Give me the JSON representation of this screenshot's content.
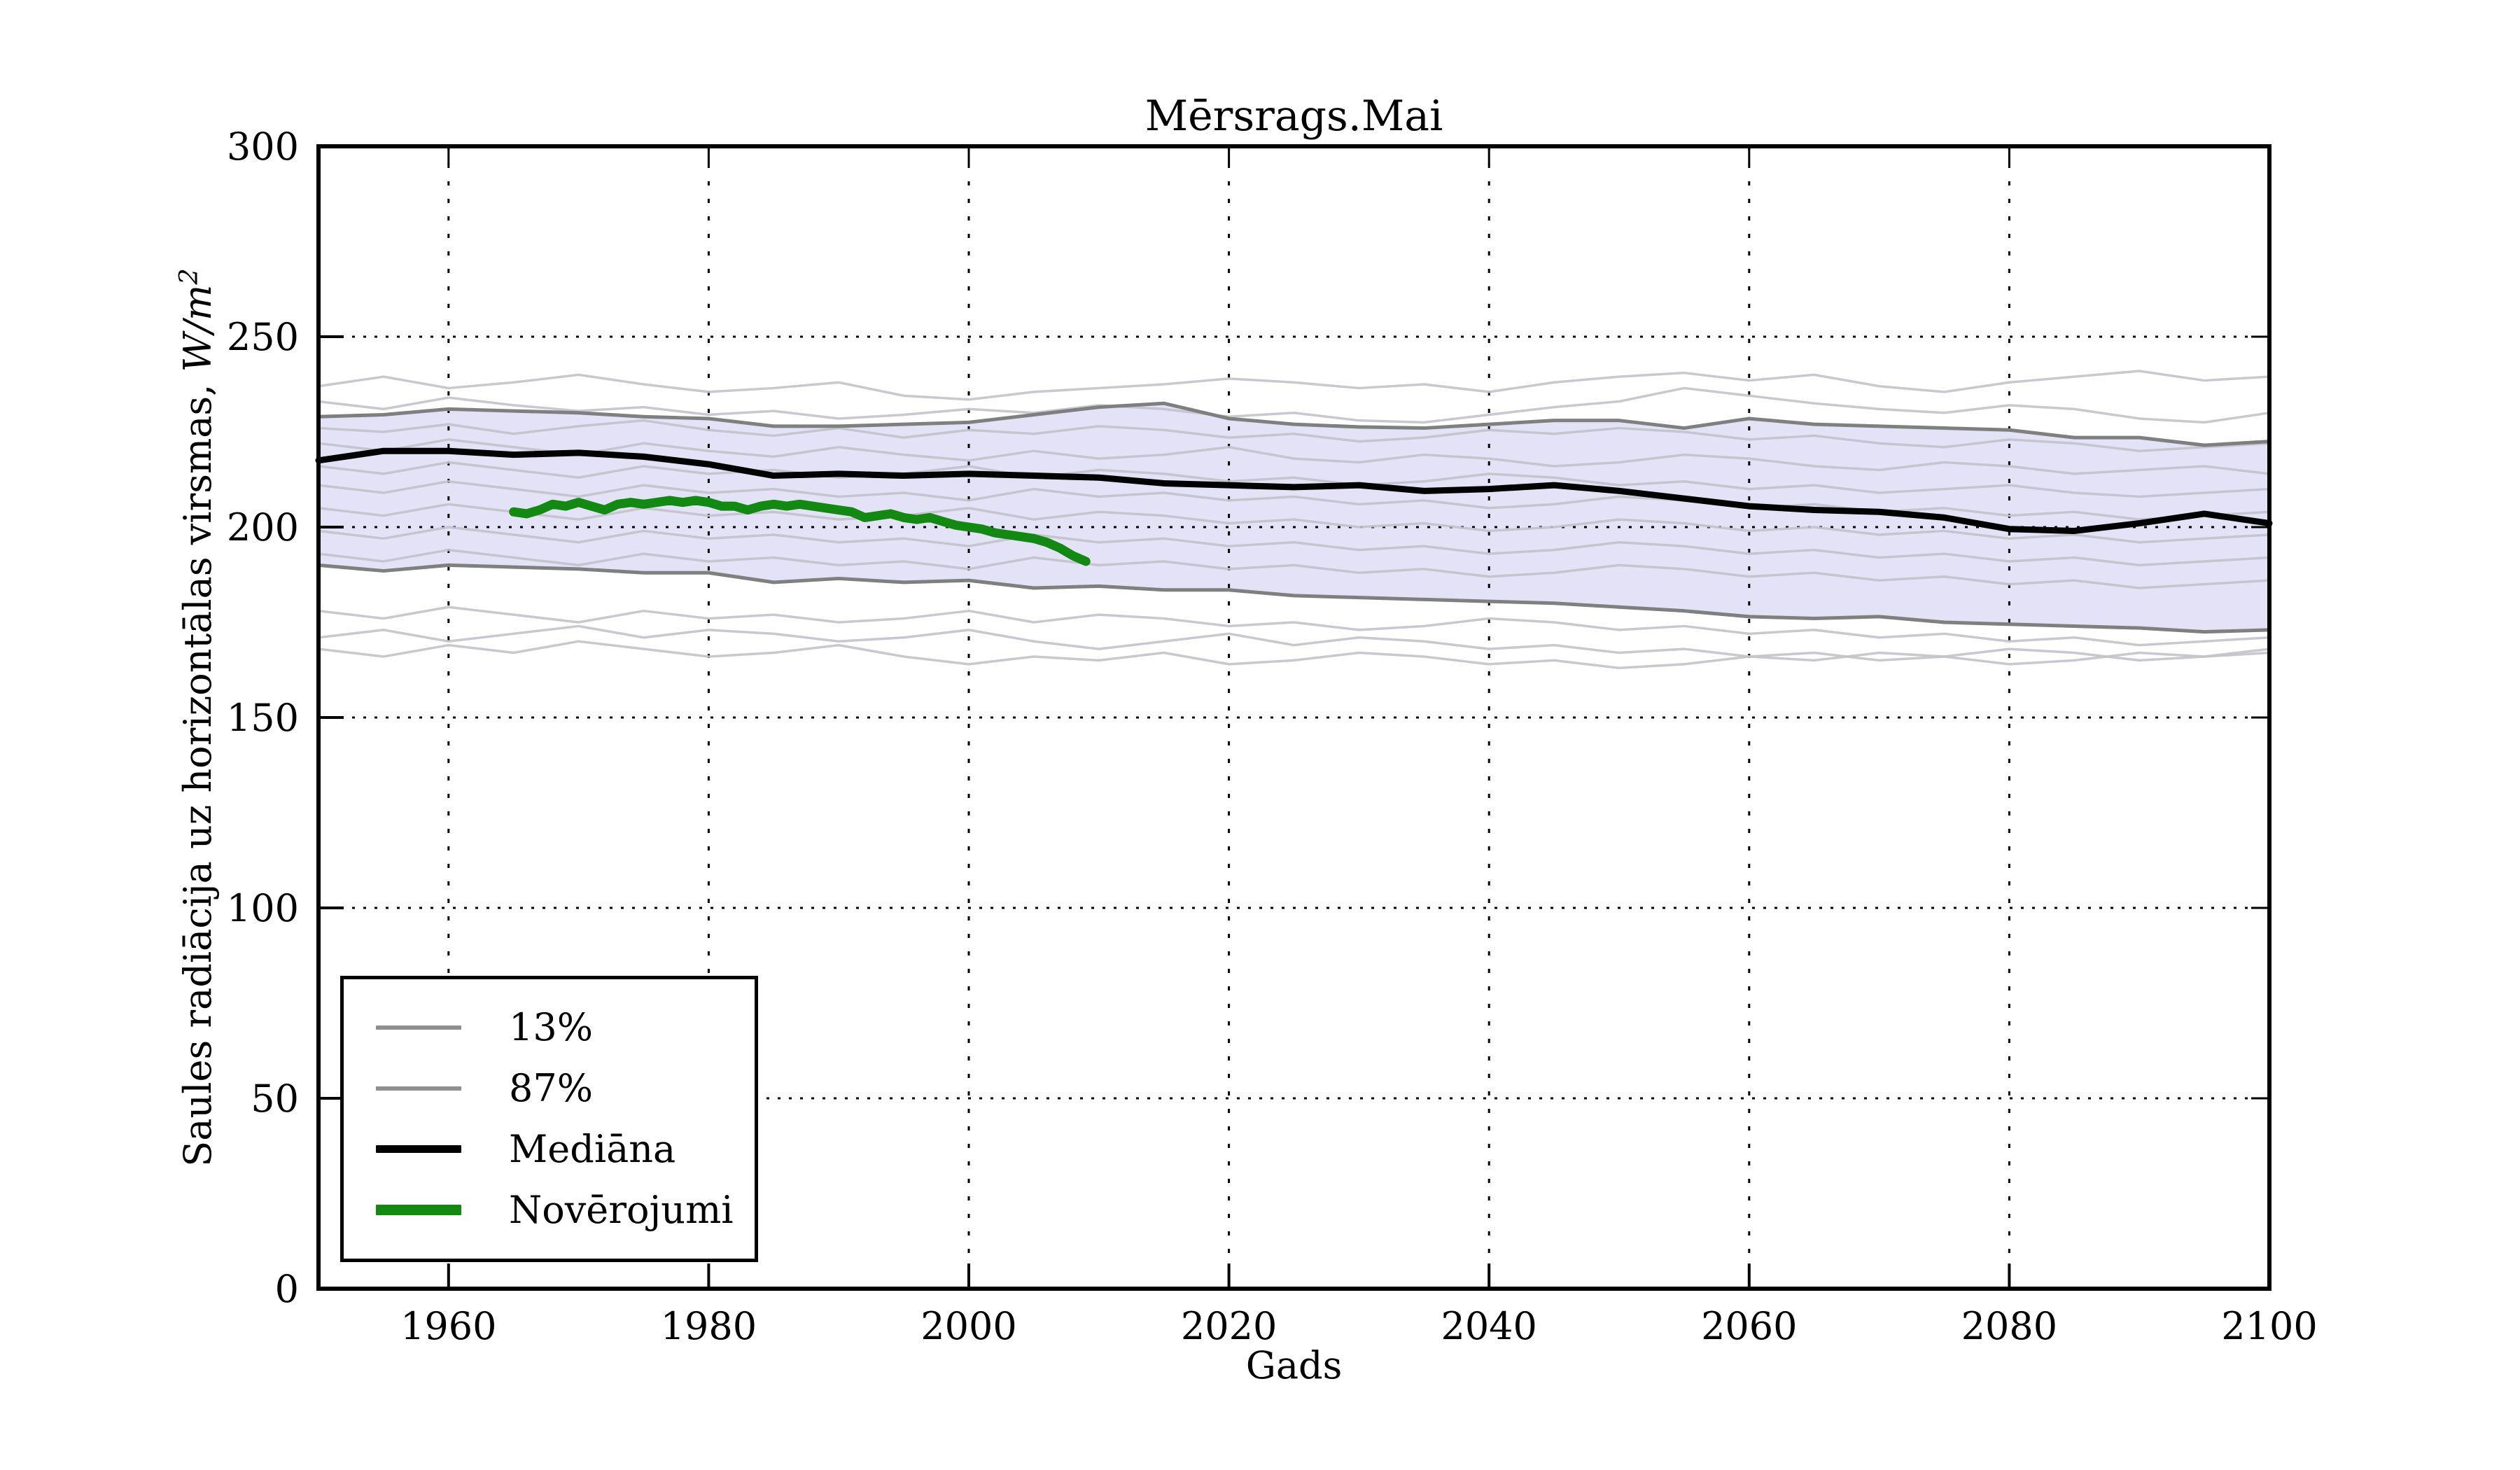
{
  "figure": {
    "title": "Mērsrags.Mai",
    "background": "#ffffff"
  },
  "axes": {
    "xlabel": "Gads",
    "ylabel_text": "Saules radiācija uz horizontālas virsmas, ",
    "ylabel_math": "W/m",
    "ylabel_sup": "2",
    "xtick_labels": [
      "1960",
      "1980",
      "2000",
      "2020",
      "2040",
      "2060",
      "2080",
      "2100"
    ],
    "ytick_labels": [
      "0",
      "50",
      "100",
      "150",
      "200",
      "250",
      "300"
    ]
  },
  "legend": {
    "entries": [
      {
        "label": "13%",
        "color": "#8f8f8f",
        "thickness": 6
      },
      {
        "label": "87%",
        "color": "#8f8f8f",
        "thickness": 6
      },
      {
        "label": "Mediāna",
        "color": "#000000",
        "thickness": 11
      },
      {
        "label": "Novērojumi",
        "color": "#128a12",
        "thickness": 15
      }
    ]
  },
  "chart_data": {
    "type": "line",
    "title": "Mērsrags.Mai",
    "xlabel": "Gads",
    "ylabel": "Saules radiācija uz horizontālas virsmas, W/m²",
    "xlim": [
      1950,
      2100
    ],
    "ylim": [
      0,
      300
    ],
    "xticks": [
      1960,
      1980,
      2000,
      2020,
      2040,
      2060,
      2080,
      2100
    ],
    "yticks": [
      0,
      50,
      100,
      150,
      200,
      250,
      300
    ],
    "grid": "dotted",
    "legend_position": "lower left",
    "colors": {
      "band_fill": "#e3e2f6",
      "band_edge": "#7f7f7f",
      "ensemble": "#c2c2cb",
      "median": "#000000",
      "observations": "#128a12",
      "grid": "#000000"
    },
    "band": {
      "upper_label": "87%",
      "lower_label": "13%",
      "years": [
        1950,
        1955,
        1960,
        1965,
        1970,
        1975,
        1980,
        1985,
        1990,
        1995,
        2000,
        2005,
        2010,
        2015,
        2020,
        2025,
        2030,
        2035,
        2040,
        2045,
        2050,
        2055,
        2060,
        2065,
        2070,
        2075,
        2080,
        2085,
        2090,
        2095,
        2100
      ],
      "upper": [
        229,
        229.5,
        231,
        230.5,
        230,
        229,
        228.5,
        226.5,
        226.5,
        227,
        227.5,
        229.5,
        231.5,
        232.5,
        228.5,
        227,
        226.3,
        226,
        227,
        228,
        228,
        226,
        228.5,
        227,
        226.5,
        226,
        225.5,
        223.5,
        223.5,
        221.5,
        222.5
      ],
      "lower": [
        190,
        188.5,
        190,
        189.5,
        189,
        188,
        188,
        185.5,
        186.5,
        185.5,
        186,
        184,
        184.5,
        183.5,
        183.5,
        182,
        181.5,
        181,
        180.5,
        180,
        179,
        178,
        176.5,
        176,
        176.5,
        175,
        174.5,
        174,
        173.5,
        172.5,
        173
      ]
    },
    "series": [
      {
        "name": "Mediāna",
        "color": "#000000",
        "width": 9,
        "years": [
          1950,
          1955,
          1960,
          1965,
          1970,
          1975,
          1980,
          1985,
          1990,
          1995,
          2000,
          2005,
          2010,
          2015,
          2020,
          2025,
          2030,
          2035,
          2040,
          2045,
          2050,
          2055,
          2060,
          2065,
          2070,
          2075,
          2080,
          2085,
          2090,
          2095,
          2100
        ],
        "values": [
          217.5,
          220,
          220,
          219,
          219.5,
          218.5,
          216.5,
          213.5,
          214,
          213.5,
          214,
          213.5,
          213,
          211.5,
          211,
          210.5,
          211,
          209.5,
          210,
          211,
          209.5,
          207.5,
          205.5,
          204.5,
          204,
          202.5,
          199.5,
          199,
          201,
          203.5,
          201
        ]
      },
      {
        "name": "Novērojumi",
        "color": "#128a12",
        "width": 13,
        "years": [
          1965,
          1966,
          1967,
          1968,
          1969,
          1970,
          1971,
          1972,
          1973,
          1974,
          1975,
          1976,
          1977,
          1978,
          1979,
          1980,
          1981,
          1982,
          1983,
          1984,
          1985,
          1986,
          1987,
          1988,
          1989,
          1990,
          1991,
          1992,
          1993,
          1994,
          1995,
          1996,
          1997,
          1998,
          1999,
          2000,
          2001,
          2002,
          2003,
          2004,
          2005,
          2006,
          2007,
          2008,
          2009
        ],
        "values": [
          204,
          203.5,
          204.5,
          206,
          205.5,
          206.5,
          205.5,
          204.5,
          206,
          206.5,
          206,
          206.5,
          207,
          206.5,
          207,
          206.5,
          205.5,
          205.5,
          204.5,
          205.5,
          206,
          205.5,
          206,
          205.5,
          205,
          204.5,
          204,
          202.5,
          203,
          203.5,
          202.5,
          202,
          202.5,
          201.5,
          200.5,
          200,
          199.5,
          198.5,
          198,
          197.5,
          197,
          196,
          194.5,
          192.5,
          191
        ]
      }
    ],
    "ensemble": {
      "color": "#c2c2cb",
      "width": 3.5,
      "years": [
        1950,
        1955,
        1960,
        1965,
        1970,
        1975,
        1980,
        1985,
        1990,
        1995,
        2000,
        2005,
        2010,
        2015,
        2020,
        2025,
        2030,
        2035,
        2040,
        2045,
        2050,
        2055,
        2060,
        2065,
        2070,
        2075,
        2080,
        2085,
        2090,
        2095,
        2100
      ],
      "members": [
        {
          "values": [
            237,
            239.5,
            236.5,
            238,
            240,
            237.5,
            235.5,
            236.5,
            238,
            234.5,
            233.5,
            235.5,
            236.5,
            237.5,
            239,
            238,
            236.5,
            237.5,
            235.5,
            238,
            239.5,
            240.5,
            238.5,
            240,
            237,
            235.5,
            238,
            239.5,
            241,
            238.5,
            239.5
          ]
        },
        {
          "values": [
            233,
            231,
            234,
            232,
            230.5,
            231.5,
            229.5,
            230.5,
            228.5,
            229.5,
            231,
            230,
            232,
            231,
            229,
            230,
            228,
            227.5,
            229.5,
            231.5,
            233,
            236.5,
            234.5,
            232.5,
            231,
            230,
            232,
            231,
            228.5,
            227.5,
            230
          ]
        },
        {
          "values": [
            226,
            225,
            227,
            224.5,
            226.5,
            228,
            225.5,
            224,
            226,
            223.5,
            225.5,
            224.5,
            226.5,
            225.5,
            223.5,
            224.5,
            222.5,
            223.5,
            225.5,
            224.5,
            226,
            225,
            223,
            224,
            222,
            221,
            223,
            222,
            220,
            221,
            222
          ]
        },
        {
          "values": [
            222,
            220,
            223,
            221,
            219,
            222,
            220,
            218.5,
            221,
            219,
            217.5,
            220,
            218,
            219,
            221,
            218,
            217,
            219,
            218,
            216,
            217,
            219,
            218,
            216,
            215,
            217,
            216,
            214,
            215,
            216,
            214
          ]
        },
        {
          "values": [
            216,
            214,
            217,
            215,
            213,
            216,
            214,
            215,
            213,
            214,
            216,
            213,
            215,
            214,
            212,
            213,
            211,
            212,
            214,
            213,
            211,
            212,
            210,
            211,
            209,
            210,
            211,
            209,
            208,
            209,
            210
          ]
        },
        {
          "values": [
            211,
            209,
            212,
            210,
            208,
            211,
            209,
            210,
            208,
            209,
            207,
            210,
            208,
            209,
            207,
            208,
            206,
            207,
            205,
            206,
            208,
            207,
            205,
            206,
            204,
            205,
            203,
            204,
            202,
            203,
            204
          ]
        },
        {
          "values": [
            205,
            203,
            206,
            204,
            202,
            205,
            203,
            204,
            202,
            203,
            205,
            202,
            204,
            203,
            201,
            202,
            200,
            201,
            199,
            200,
            202,
            201,
            199,
            200,
            198,
            199,
            197,
            198,
            196,
            197,
            198
          ]
        },
        {
          "values": [
            199,
            197,
            200,
            198,
            196,
            199,
            197,
            198,
            196,
            197,
            195,
            198,
            196,
            197,
            195,
            196,
            194,
            195,
            193,
            194,
            196,
            195,
            193,
            194,
            192,
            193,
            191,
            192,
            190,
            191,
            192
          ]
        },
        {
          "values": [
            193,
            191,
            194,
            192,
            190,
            193,
            191,
            192,
            190,
            191,
            189,
            192,
            190,
            191,
            189,
            190,
            188,
            189,
            187,
            188,
            190,
            189,
            187,
            188,
            186,
            187,
            185,
            186,
            184,
            185,
            186
          ]
        },
        {
          "values": [
            178,
            176,
            179,
            177,
            175,
            178,
            176,
            177,
            175,
            176,
            178,
            175,
            177,
            176,
            174,
            175,
            173,
            174,
            176,
            175,
            173,
            174,
            172,
            173,
            171,
            172,
            170,
            171,
            169,
            170,
            171
          ]
        },
        {
          "values": [
            168,
            166,
            169,
            167,
            170,
            168,
            166,
            167,
            169,
            166,
            164,
            166,
            165,
            167,
            164,
            165,
            167,
            166,
            164,
            165,
            163,
            164,
            166,
            165,
            167,
            166,
            164,
            165,
            167,
            166,
            168
          ]
        },
        {
          "values": [
            171,
            173,
            170,
            172,
            174,
            171,
            173,
            172,
            170,
            171,
            173,
            170,
            168,
            170,
            172,
            169,
            171,
            170,
            168,
            169,
            167,
            168,
            166,
            167,
            165,
            166,
            168,
            167,
            165,
            166,
            167
          ]
        }
      ]
    }
  }
}
